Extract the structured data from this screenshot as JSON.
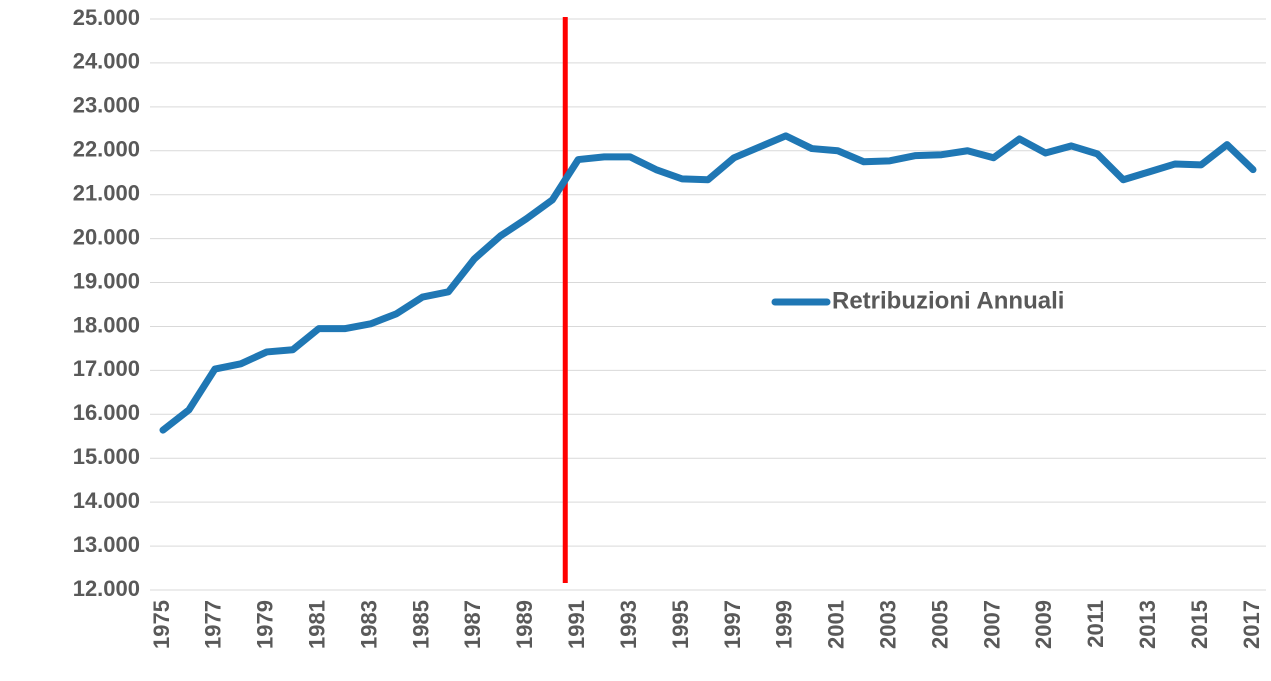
{
  "chart_data": {
    "type": "line",
    "categories": [
      "1975",
      null,
      "1977",
      null,
      "1979",
      null,
      "1981",
      null,
      "1983",
      null,
      "1985",
      null,
      "1987",
      null,
      "1989",
      null,
      "1991",
      null,
      "1993",
      null,
      "1995",
      null,
      "1997",
      null,
      "1999",
      null,
      "2001",
      null,
      "2003",
      null,
      "2005",
      null,
      "2007",
      null,
      "2009",
      null,
      "2011",
      null,
      "2013",
      null,
      "2015",
      null,
      "2017"
    ],
    "series": [
      {
        "name": "Retribuzioni Annuali",
        "color": "#1f77b4",
        "values": [
          15640,
          16100,
          17030,
          17150,
          17420,
          17470,
          17950,
          17950,
          18060,
          18290,
          18670,
          18790,
          19540,
          20060,
          20450,
          20880,
          21800,
          21860,
          21860,
          21570,
          21360,
          21340,
          21840,
          22090,
          22340,
          22050,
          22000,
          21750,
          21770,
          21890,
          21910,
          22000,
          21840,
          22270,
          21950,
          22110,
          21930,
          21340,
          21520,
          21700,
          21680,
          22140,
          21570
        ]
      }
    ],
    "ylim": [
      12000,
      25000
    ],
    "yticks": [
      {
        "value": 12000,
        "label": "12.000"
      },
      {
        "value": 13000,
        "label": "13.000"
      },
      {
        "value": 14000,
        "label": "14.000"
      },
      {
        "value": 15000,
        "label": "15.000"
      },
      {
        "value": 16000,
        "label": "16.000"
      },
      {
        "value": 17000,
        "label": "17.000"
      },
      {
        "value": 18000,
        "label": "18.000"
      },
      {
        "value": 19000,
        "label": "19.000"
      },
      {
        "value": 20000,
        "label": "20.000"
      },
      {
        "value": 21000,
        "label": "21.000"
      },
      {
        "value": 22000,
        "label": "22.000"
      },
      {
        "value": 23000,
        "label": "23.000"
      },
      {
        "value": 24000,
        "label": "24.000"
      },
      {
        "value": 25000,
        "label": "25.000"
      }
    ],
    "grid": true,
    "legend": "center-right",
    "vline": {
      "x": 1990.5,
      "color": "#ff0000"
    }
  }
}
